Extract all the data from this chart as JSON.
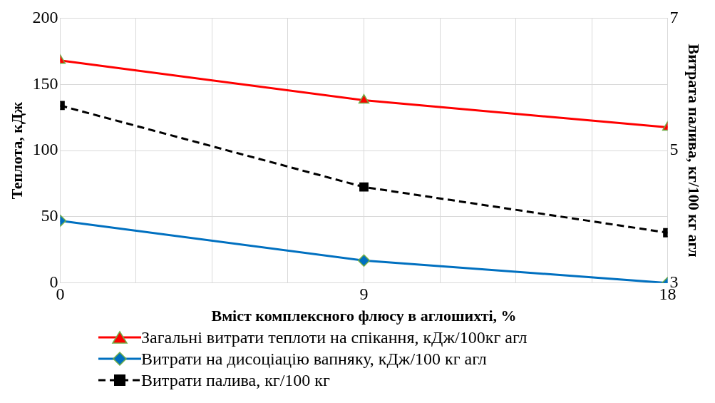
{
  "chart_data": {
    "type": "line",
    "xlabel": "Вміст комплексного флюсу в аглошихті, %",
    "ylabel": "Теплота, кДж",
    "y2label": "Витрата палива, кг/100 кг агл",
    "x": [
      0,
      9,
      18
    ],
    "series": [
      {
        "name": "Загальні витрати теплоти на спікання, кДж/100кг агл",
        "color": "#ff0000",
        "values": [
          168,
          138,
          117.5
        ],
        "marker": "triangle",
        "line_style": "solid"
      },
      {
        "name": "Витрати на дисоціацію вапняку, кДж/100 кг агл",
        "color": "#0070c0",
        "values": [
          47,
          17,
          0
        ],
        "marker": "diamond",
        "line_style": "solid"
      },
      {
        "name": "Витрати палива, кг/100 кг",
        "color": "#000000",
        "values": [
          5.68,
          4.45,
          3.76
        ],
        "marker": "square",
        "line_style": "dashed",
        "axis": "y2"
      }
    ],
    "xlim": [
      0,
      18
    ],
    "xticks": [
      0,
      {
        "value": 2.25,
        "label": null
      },
      {
        "value": 4.5,
        "label": null
      },
      {
        "value": 6.75,
        "label": null
      },
      9,
      {
        "value": 11.25,
        "label": null
      },
      {
        "value": 13.5,
        "label": null
      },
      {
        "value": 15.75,
        "label": null
      },
      18
    ],
    "ylim": [
      0,
      200
    ],
    "yticks": [
      0,
      50,
      100,
      150,
      200
    ],
    "y2lim": [
      3,
      7
    ],
    "y2ticks": [
      3,
      5,
      7
    ],
    "grid": true,
    "legend": "bottom"
  }
}
